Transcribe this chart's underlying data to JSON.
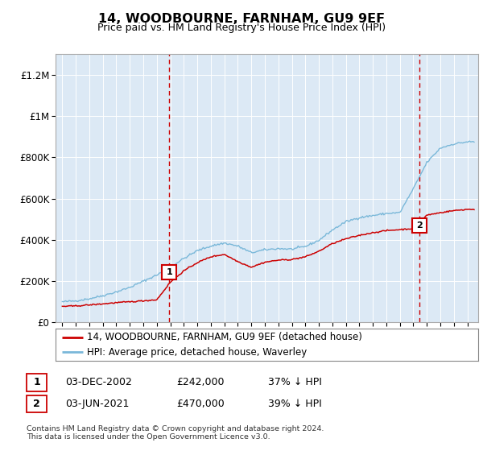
{
  "title": "14, WOODBOURNE, FARNHAM, GU9 9EF",
  "subtitle": "Price paid vs. HM Land Registry's House Price Index (HPI)",
  "legend_line1": "14, WOODBOURNE, FARNHAM, GU9 9EF (detached house)",
  "legend_line2": "HPI: Average price, detached house, Waverley",
  "annotation1": {
    "num": "1",
    "date": "03-DEC-2002",
    "price": "£242,000",
    "note": "37% ↓ HPI"
  },
  "annotation2": {
    "num": "2",
    "date": "03-JUN-2021",
    "price": "£470,000",
    "note": "39% ↓ HPI"
  },
  "copyright": "Contains HM Land Registry data © Crown copyright and database right 2024.\nThis data is licensed under the Open Government Licence v3.0.",
  "hpi_color": "#7ab8d9",
  "price_color": "#cc0000",
  "dashed_line_color": "#cc0000",
  "plot_bg_color": "#dce9f5",
  "ylim": [
    0,
    1300000
  ],
  "yticks": [
    0,
    200000,
    400000,
    600000,
    800000,
    1000000,
    1200000
  ],
  "ytick_labels": [
    "£0",
    "£200K",
    "£400K",
    "£600K",
    "£800K",
    "£1M",
    "£1.2M"
  ],
  "marker1_x": 2002.92,
  "marker1_y": 242000,
  "marker2_x": 2021.42,
  "marker2_y": 470000,
  "xmin": 1994.5,
  "xmax": 2025.8,
  "hpi_base": [
    100000,
    105000,
    115000,
    130000,
    148000,
    170000,
    200000,
    230000,
    268000,
    310000,
    348000,
    370000,
    385000,
    370000,
    338000,
    352000,
    358000,
    355000,
    368000,
    398000,
    448000,
    488000,
    508000,
    518000,
    528000,
    532000,
    648000,
    775000,
    845000,
    865000,
    875000
  ],
  "price_base": [
    78000,
    80000,
    85000,
    90000,
    96000,
    100000,
    105000,
    110000,
    195000,
    250000,
    290000,
    318000,
    330000,
    295000,
    268000,
    292000,
    302000,
    305000,
    318000,
    345000,
    382000,
    405000,
    422000,
    435000,
    445000,
    450000,
    455000,
    520000,
    532000,
    542000,
    548000
  ],
  "base_years": [
    1995,
    1996,
    1997,
    1998,
    1999,
    2000,
    2001,
    2002,
    2003,
    2004,
    2005,
    2006,
    2007,
    2008,
    2009,
    2010,
    2011,
    2012,
    2013,
    2014,
    2015,
    2016,
    2017,
    2018,
    2019,
    2020,
    2021,
    2022,
    2023,
    2024,
    2025
  ]
}
